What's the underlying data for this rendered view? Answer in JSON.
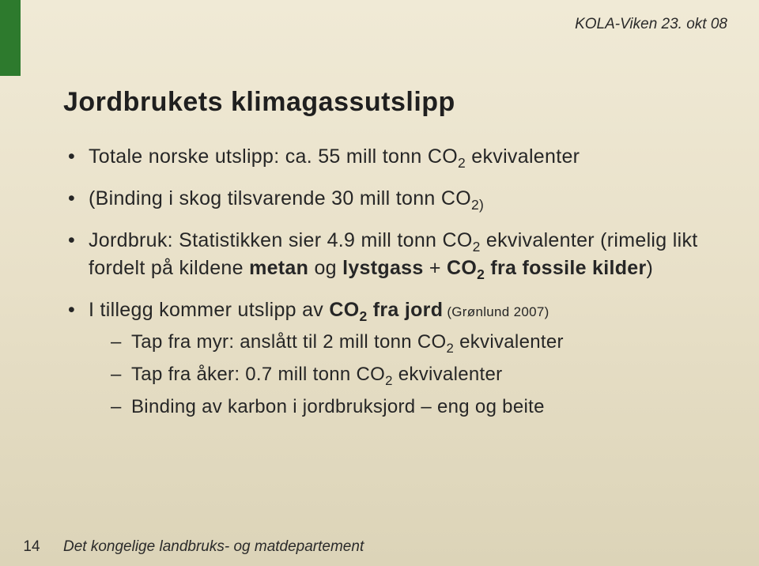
{
  "header": {
    "event": "KOLA-Viken 23. okt 08"
  },
  "title": "Jordbrukets klimagassutslipp",
  "bullets": {
    "b1_pre": "Totale norske utslipp: ca. 55 mill tonn CO",
    "b1_sub": "2",
    "b1_post": " ekvivalenter",
    "b2_pre": "(Binding i skog tilsvarende 30 mill tonn CO",
    "b2_sub": "2)",
    "b3_pre": "Jordbruk: Statistikken sier 4.9 mill tonn CO",
    "b3_sub": "2",
    "b3_mid1": " ekvivalenter (rimelig likt fordelt på kildene ",
    "b3_bold1": "metan",
    "b3_mid2": " og ",
    "b3_bold2": "lystgass",
    "b3_mid3": " + ",
    "b3_bold3_pre": "CO",
    "b3_bold3_sub": "2",
    "b3_bold3_post": " fra fossile kilder",
    "b3_end": ")",
    "b4_pre": "I tillegg kommer utslipp av ",
    "b4_bold_pre": "CO",
    "b4_bold_sub": "2",
    "b4_bold_post": " fra jord",
    "b4_small": " (Grønlund 2007)",
    "s1_pre": "Tap fra myr: anslått til 2 mill tonn CO",
    "s1_sub": "2",
    "s1_post": " ekvivalenter",
    "s2_pre": "Tap fra åker: 0.7 mill tonn CO",
    "s2_sub": "2",
    "s2_post": " ekvivalenter",
    "s3": "Binding av karbon i jordbruksjord – eng og beite"
  },
  "footer": {
    "page": "14",
    "dept": "Det kongelige landbruks- og matdepartement"
  },
  "colors": {
    "accent_green": "#2d7a2d",
    "bg_top": "#f0ead6",
    "bg_bottom": "#dcd4b8",
    "text": "#262626"
  }
}
